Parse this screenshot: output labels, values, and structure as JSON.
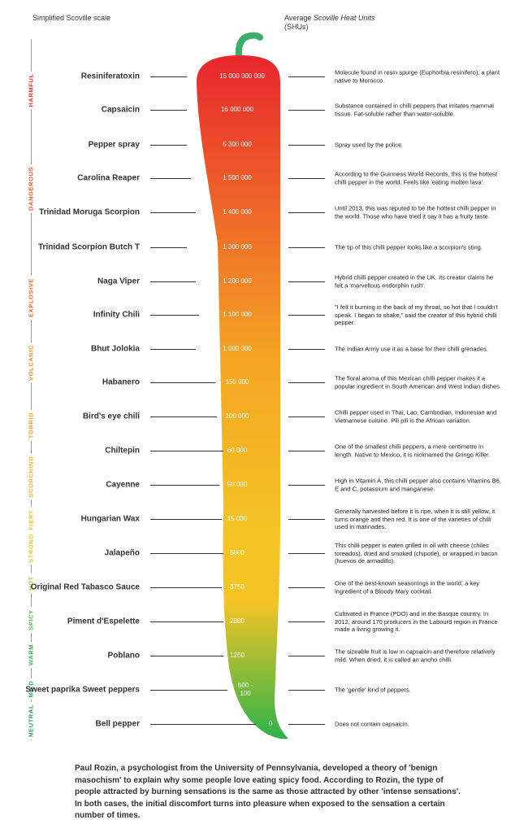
{
  "header": {
    "left": "Simplified Scoville scale",
    "right_prefix": "Average ",
    "right_italic": "Scoville Heat Units",
    "right_suffix": "(SHUs)"
  },
  "scale": [
    {
      "label": "HARMFUL",
      "color": "#e8352b"
    },
    {
      "label": "DANGEROUS",
      "color": "#ec5a2c"
    },
    {
      "label": "EXPLOSIVE",
      "color": "#ef6a2a"
    },
    {
      "label": "VOLCANIC",
      "color": "#f08a2c"
    },
    {
      "label": "TORRID",
      "color": "#f39a2a"
    },
    {
      "label": "SCORCHING",
      "color": "#f5ad2a"
    },
    {
      "label": "FIERY",
      "color": "#f6bd2a"
    },
    {
      "label": "STRONG",
      "color": "#ecc12a"
    },
    {
      "label": "HOT",
      "color": "#a8c83a"
    },
    {
      "label": "SPICY",
      "color": "#57b852"
    },
    {
      "label": "WARM",
      "color": "#3cae57"
    },
    {
      "label": "MILD",
      "color": "#2ea85a"
    },
    {
      "label": "NEUTRAL",
      "color": "#2aa25a"
    }
  ],
  "peppers": [
    {
      "name": "Resiniferatoxin",
      "shu": "15 000 000 000",
      "desc": "Molecule found in resin spurge (Euphorbia resinifero), a plant native to Morocco."
    },
    {
      "name": "Capsaicin",
      "shu": "16 000 000",
      "desc": "Substance contained in chilli peppers that irritates mammal tissue. Fat-soluble rather than water-soluble."
    },
    {
      "name": "Pepper spray",
      "shu": "5 300 000",
      "desc": "Spray used by the police."
    },
    {
      "name": "Carolina Reaper",
      "shu": "1 500 000",
      "desc": "According to the Guinness World Records, this is the hottest chilli pepper in the world. Feels like 'eating molten lava'."
    },
    {
      "name": "Trinidad Moruga Scorpion",
      "shu": "1 400 000",
      "desc": "Until 2013, this was reputed to be the hottest chilli pepper in the world. Those who have tried it say it has a fruity taste."
    },
    {
      "name": "Trinidad Scorpion Butch T",
      "shu": "1 300 000",
      "desc": "The tip of this chilli pepper looks like a scorpion's sting."
    },
    {
      "name": "Naga Viper",
      "shu": "1 200 000",
      "desc": "Hybrid chilli pepper created in the UK. Its creator claims he felt a 'marvellous endorphin rush'."
    },
    {
      "name": "Infinity Chili",
      "shu": "1 100 000",
      "desc": "\"I felt it burning in the back of my throat, so hot that I couldn't speak. I began to shake,\" said the creator of this hybrid chilli pepper."
    },
    {
      "name": "Bhut Jolokia",
      "shu": "1 000 000",
      "desc": "The Indian Army use it as a base for their chilli grenades."
    },
    {
      "name": "Habanero",
      "shu": "150 000",
      "desc": "The floral aroma of this Mexican chilli pepper makes it a popular ingredient in South American and West Indian dishes."
    },
    {
      "name": "Bird's eye chili",
      "shu": "100 000",
      "desc": "Chilli pepper used in Thai, Lao, Cambodian, Indonesian and Vietnamese cuisine. Pili pili is the African variation."
    },
    {
      "name": "Chiltepin",
      "shu": "60 000",
      "desc": "One of the smallest chilli peppers, a mere centimetre in length. Native to Mexico, it is nicknamed the Gringo Killer."
    },
    {
      "name": "Cayenne",
      "shu": "50 000",
      "desc": "High in Vitamin A, this chilli pepper also contains Vitamins B6, E and C, potassium and manganese."
    },
    {
      "name": "Hungarian Wax",
      "shu": "15 000",
      "desc": "Generally harvested before it is ripe, when it is still yellow, it turns orange and then red. It is one of the varieties of chilli used in marinades."
    },
    {
      "name": "Jalapeño",
      "shu": "5000",
      "desc": "This chilli pepper is eaten grilled in oil with cheese (chiles toreados), dried and smoked (chipotle), or wrapped in bacon (huevos de armadillo)."
    },
    {
      "name": "Original Red Tabasco Sauce",
      "shu": "3750",
      "desc": "One of the best-known seasonings in the world, a key ingredient of a Bloody Mary cocktail."
    },
    {
      "name": "Piment d'Espelette",
      "shu": "2000",
      "desc": "Cultivated in France (PDO) and in the Basque country. In 2012, around 170 producers in the Labourd region in France made a living growing it."
    },
    {
      "name": "Poblano",
      "shu": "1250",
      "desc": "The sizeable fruit is low in capsaicin and therefore relatively mild. When dried, it is called an ancho chilli."
    },
    {
      "name": "Sweet paprika Sweet peppers",
      "shu": "500 - 100",
      "desc": "The 'gentle' kind of peppers."
    },
    {
      "name": "Bell pepper",
      "shu": "0",
      "desc": "Does not contain capsaicin."
    }
  ],
  "footer": "Paul Rozin, a psychologist from the University of Pennsylvania, developed a theory of 'benign masochism' to explain why some people love eating spicy food. According to Rozin, the type of people attracted by burning sensations is the same as those attracted by other 'intense sensations'. In both cases, the initial discomfort turns into pleasure when exposed to the sensation a certain number of times.",
  "colors": {
    "pepper_top": "#e8262e",
    "pepper_mid": "#f5a623",
    "pepper_yellow": "#f4c425",
    "pepper_bottom": "#2db34a",
    "stem": "#3dae6a"
  }
}
